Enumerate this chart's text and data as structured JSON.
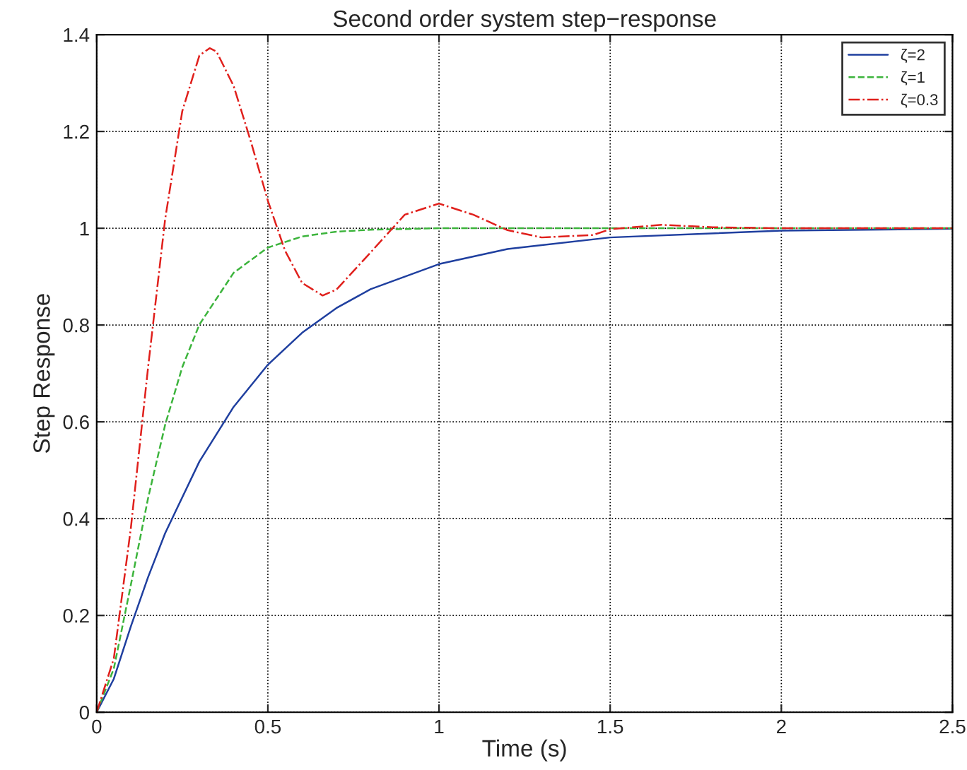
{
  "chart_data": {
    "type": "line",
    "title": "Second order system step−response",
    "xlabel": "Time (s)",
    "ylabel": "Step Response",
    "xlim": [
      0,
      2.5
    ],
    "xticks": [
      0,
      0.5,
      1,
      1.5,
      2,
      2.5
    ],
    "ylim": [
      0,
      1.4
    ],
    "yticks": [
      0,
      0.2,
      0.4,
      0.6,
      0.8,
      1,
      1.2,
      1.4
    ],
    "grid": true,
    "legend": "top right",
    "series": [
      {
        "name": "ζ=2",
        "color": "#1f3f9f",
        "line_style": "solid",
        "x": [
          0,
          0.05,
          0.1,
          0.15,
          0.2,
          0.3,
          0.4,
          0.5,
          0.6,
          0.7,
          0.8,
          1.0,
          1.2,
          1.5,
          2.0,
          2.5
        ],
        "values": [
          0,
          0.069,
          0.178,
          0.279,
          0.37,
          0.518,
          0.631,
          0.718,
          0.784,
          0.835,
          0.874,
          0.926,
          0.957,
          0.981,
          0.995,
          0.999
        ]
      },
      {
        "name": "ζ=1",
        "color": "#3cb43c",
        "line_style": "dashed",
        "x": [
          0,
          0.05,
          0.1,
          0.15,
          0.2,
          0.25,
          0.3,
          0.4,
          0.5,
          0.6,
          0.7,
          0.8,
          1.0,
          1.5,
          2.0,
          2.5
        ],
        "values": [
          0,
          0.09,
          0.264,
          0.442,
          0.594,
          0.713,
          0.801,
          0.908,
          0.96,
          0.983,
          0.993,
          0.997,
          1.0,
          1.0,
          1.0,
          1.0
        ]
      },
      {
        "name": "ζ=0.3",
        "color": "#e0201c",
        "line_style": "dashdot",
        "x": [
          0,
          0.05,
          0.1,
          0.15,
          0.2,
          0.25,
          0.3,
          0.33,
          0.35,
          0.4,
          0.45,
          0.5,
          0.55,
          0.6,
          0.66,
          0.7,
          0.8,
          0.9,
          1.0,
          1.1,
          1.2,
          1.3,
          1.45,
          1.5,
          1.65,
          1.8,
          2.0,
          2.5
        ],
        "values": [
          0,
          0.111,
          0.382,
          0.712,
          1.019,
          1.242,
          1.357,
          1.372,
          1.365,
          1.294,
          1.18,
          1.057,
          0.954,
          0.887,
          0.861,
          0.873,
          0.95,
          1.028,
          1.051,
          1.028,
          0.996,
          0.981,
          0.986,
          0.998,
          1.007,
          1.002,
          1.0,
          1.0
        ]
      }
    ]
  }
}
